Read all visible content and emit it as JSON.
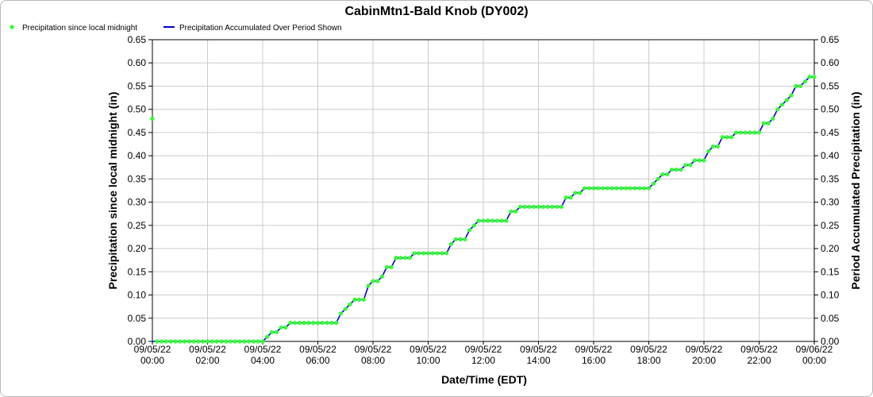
{
  "colors": {
    "points": "#33ff33",
    "line": "#0000cc",
    "grid": "#cccccc",
    "frame": "#b8b8b8"
  },
  "chart_data": {
    "type": "line",
    "title": "CabinMtn1-Bald Knob (DY002)",
    "xlabel": "Date/Time (EDT)",
    "ylabel_left": "Precipitation since local midnight (in)",
    "ylabel_right": "Period Accumulated Precipitation (in)",
    "ylim": [
      0,
      0.65
    ],
    "yticks": [
      "0.00",
      "0.05",
      "0.10",
      "0.15",
      "0.20",
      "0.25",
      "0.30",
      "0.35",
      "0.40",
      "0.45",
      "0.50",
      "0.55",
      "0.60",
      "0.65"
    ],
    "xlim": [
      0,
      24
    ],
    "xticks": [
      {
        "date": "09/05/22",
        "time": "00:00"
      },
      {
        "date": "09/05/22",
        "time": "02:00"
      },
      {
        "date": "09/05/22",
        "time": "04:00"
      },
      {
        "date": "09/05/22",
        "time": "06:00"
      },
      {
        "date": "09/05/22",
        "time": "08:00"
      },
      {
        "date": "09/05/22",
        "time": "10:00"
      },
      {
        "date": "09/05/22",
        "time": "12:00"
      },
      {
        "date": "09/05/22",
        "time": "14:00"
      },
      {
        "date": "09/05/22",
        "time": "16:00"
      },
      {
        "date": "09/05/22",
        "time": "18:00"
      },
      {
        "date": "09/05/22",
        "time": "20:00"
      },
      {
        "date": "09/05/22",
        "time": "22:00"
      },
      {
        "date": "09/06/22",
        "time": "00:00"
      }
    ],
    "grid": true,
    "legend": "top-left",
    "series": [
      {
        "name": "Precipitation since local midnight",
        "style": "points",
        "x": [
          0,
          0.167,
          0.333,
          0.5,
          0.667,
          0.833,
          1,
          1.167,
          1.333,
          1.5,
          1.667,
          1.833,
          2,
          2.167,
          2.333,
          2.5,
          2.667,
          2.833,
          3,
          3.167,
          3.333,
          3.5,
          3.667,
          3.833,
          4,
          4.167,
          4.333,
          4.5,
          4.667,
          4.833,
          5,
          5.167,
          5.333,
          5.5,
          5.667,
          5.833,
          6,
          6.167,
          6.333,
          6.5,
          6.667,
          6.833,
          7,
          7.167,
          7.333,
          7.5,
          7.667,
          7.833,
          8,
          8.167,
          8.333,
          8.5,
          8.667,
          8.833,
          9,
          9.167,
          9.333,
          9.5,
          9.667,
          9.833,
          10,
          10.167,
          10.333,
          10.5,
          10.667,
          10.833,
          11,
          11.167,
          11.333,
          11.5,
          11.667,
          11.833,
          12,
          12.167,
          12.333,
          12.5,
          12.667,
          12.833,
          13,
          13.167,
          13.333,
          13.5,
          13.667,
          13.833,
          14,
          14.167,
          14.333,
          14.5,
          14.667,
          14.833,
          15,
          15.167,
          15.333,
          15.5,
          15.667,
          15.833,
          16,
          16.167,
          16.333,
          16.5,
          16.667,
          16.833,
          17,
          17.167,
          17.333,
          17.5,
          17.667,
          17.833,
          18,
          18.167,
          18.333,
          18.5,
          18.667,
          18.833,
          19,
          19.167,
          19.333,
          19.5,
          19.667,
          19.833,
          20,
          20.167,
          20.333,
          20.5,
          20.667,
          20.833,
          21,
          21.167,
          21.333,
          21.5,
          21.667,
          21.833,
          22,
          22.167,
          22.333,
          22.5,
          22.667,
          22.833,
          23,
          23.167,
          23.333,
          23.5,
          23.667,
          23.833,
          24
        ],
        "values": [
          0.48,
          0,
          0,
          0,
          0,
          0,
          0,
          0,
          0,
          0,
          0,
          0,
          0,
          0,
          0,
          0,
          0,
          0,
          0,
          0,
          0,
          0,
          0,
          0,
          0,
          0.01,
          0.02,
          0.02,
          0.03,
          0.03,
          0.04,
          0.04,
          0.04,
          0.04,
          0.04,
          0.04,
          0.04,
          0.04,
          0.04,
          0.04,
          0.04,
          0.06,
          0.07,
          0.08,
          0.09,
          0.09,
          0.09,
          0.12,
          0.13,
          0.13,
          0.14,
          0.16,
          0.16,
          0.18,
          0.18,
          0.18,
          0.18,
          0.19,
          0.19,
          0.19,
          0.19,
          0.19,
          0.19,
          0.19,
          0.19,
          0.21,
          0.22,
          0.22,
          0.22,
          0.24,
          0.25,
          0.26,
          0.26,
          0.26,
          0.26,
          0.26,
          0.26,
          0.26,
          0.28,
          0.28,
          0.29,
          0.29,
          0.29,
          0.29,
          0.29,
          0.29,
          0.29,
          0.29,
          0.29,
          0.29,
          0.31,
          0.31,
          0.32,
          0.32,
          0.33,
          0.33,
          0.33,
          0.33,
          0.33,
          0.33,
          0.33,
          0.33,
          0.33,
          0.33,
          0.33,
          0.33,
          0.33,
          0.33,
          0.33,
          0.34,
          0.35,
          0.36,
          0.36,
          0.37,
          0.37,
          0.37,
          0.38,
          0.38,
          0.39,
          0.39,
          0.39,
          0.41,
          0.42,
          0.42,
          0.44,
          0.44,
          0.44,
          0.45,
          0.45,
          0.45,
          0.45,
          0.45,
          0.45,
          0.47,
          0.47,
          0.48,
          0.5,
          0.51,
          0.52,
          0.53,
          0.55,
          0.55,
          0.56,
          0.57,
          0.57
        ]
      },
      {
        "name": "Precipitation Accumulated Over Period Shown",
        "style": "line",
        "x": [
          0,
          0.167,
          0.333,
          0.5,
          0.667,
          0.833,
          1,
          1.167,
          1.333,
          1.5,
          1.667,
          1.833,
          2,
          2.167,
          2.333,
          2.5,
          2.667,
          2.833,
          3,
          3.167,
          3.333,
          3.5,
          3.667,
          3.833,
          4,
          4.167,
          4.333,
          4.5,
          4.667,
          4.833,
          5,
          5.167,
          5.333,
          5.5,
          5.667,
          5.833,
          6,
          6.167,
          6.333,
          6.5,
          6.667,
          6.833,
          7,
          7.167,
          7.333,
          7.5,
          7.667,
          7.833,
          8,
          8.167,
          8.333,
          8.5,
          8.667,
          8.833,
          9,
          9.167,
          9.333,
          9.5,
          9.667,
          9.833,
          10,
          10.167,
          10.333,
          10.5,
          10.667,
          10.833,
          11,
          11.167,
          11.333,
          11.5,
          11.667,
          11.833,
          12,
          12.167,
          12.333,
          12.5,
          12.667,
          12.833,
          13,
          13.167,
          13.333,
          13.5,
          13.667,
          13.833,
          14,
          14.167,
          14.333,
          14.5,
          14.667,
          14.833,
          15,
          15.167,
          15.333,
          15.5,
          15.667,
          15.833,
          16,
          16.167,
          16.333,
          16.5,
          16.667,
          16.833,
          17,
          17.167,
          17.333,
          17.5,
          17.667,
          17.833,
          18,
          18.167,
          18.333,
          18.5,
          18.667,
          18.833,
          19,
          19.167,
          19.333,
          19.5,
          19.667,
          19.833,
          20,
          20.167,
          20.333,
          20.5,
          20.667,
          20.833,
          21,
          21.167,
          21.333,
          21.5,
          21.667,
          21.833,
          22,
          22.167,
          22.333,
          22.5,
          22.667,
          22.833,
          23,
          23.167,
          23.333,
          23.5,
          23.667,
          23.833,
          24
        ],
        "values": [
          0,
          0,
          0,
          0,
          0,
          0,
          0,
          0,
          0,
          0,
          0,
          0,
          0,
          0,
          0,
          0,
          0,
          0,
          0,
          0,
          0,
          0,
          0,
          0,
          0,
          0.01,
          0.02,
          0.02,
          0.03,
          0.03,
          0.04,
          0.04,
          0.04,
          0.04,
          0.04,
          0.04,
          0.04,
          0.04,
          0.04,
          0.04,
          0.04,
          0.06,
          0.07,
          0.08,
          0.09,
          0.09,
          0.09,
          0.12,
          0.13,
          0.13,
          0.14,
          0.16,
          0.16,
          0.18,
          0.18,
          0.18,
          0.18,
          0.19,
          0.19,
          0.19,
          0.19,
          0.19,
          0.19,
          0.19,
          0.19,
          0.21,
          0.22,
          0.22,
          0.22,
          0.24,
          0.25,
          0.26,
          0.26,
          0.26,
          0.26,
          0.26,
          0.26,
          0.26,
          0.28,
          0.28,
          0.29,
          0.29,
          0.29,
          0.29,
          0.29,
          0.29,
          0.29,
          0.29,
          0.29,
          0.29,
          0.31,
          0.31,
          0.32,
          0.32,
          0.33,
          0.33,
          0.33,
          0.33,
          0.33,
          0.33,
          0.33,
          0.33,
          0.33,
          0.33,
          0.33,
          0.33,
          0.33,
          0.33,
          0.33,
          0.34,
          0.35,
          0.36,
          0.36,
          0.37,
          0.37,
          0.37,
          0.38,
          0.38,
          0.39,
          0.39,
          0.39,
          0.41,
          0.42,
          0.42,
          0.44,
          0.44,
          0.44,
          0.45,
          0.45,
          0.45,
          0.45,
          0.45,
          0.45,
          0.47,
          0.47,
          0.48,
          0.5,
          0.51,
          0.52,
          0.53,
          0.55,
          0.55,
          0.56,
          0.57,
          0.57
        ]
      }
    ]
  }
}
